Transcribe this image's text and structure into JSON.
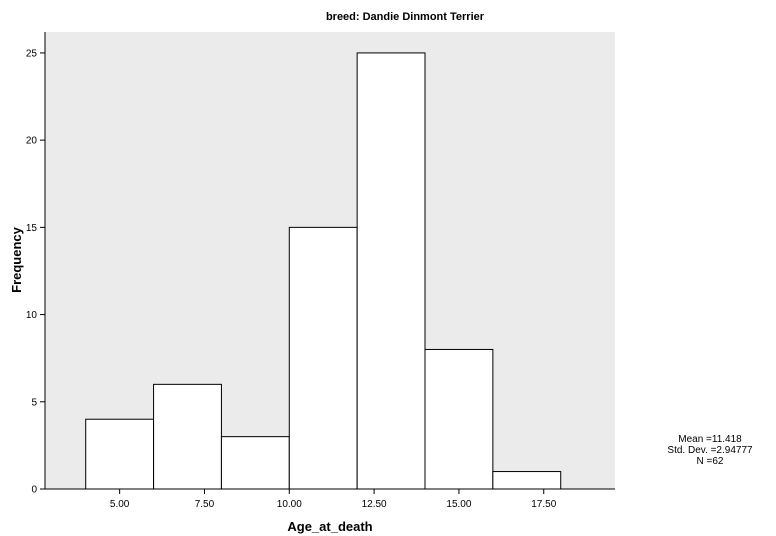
{
  "chart_data": {
    "type": "bar",
    "title": "breed: Dandie Dinmont Terrier",
    "xlabel": "Age_at_death",
    "ylabel": "Frequency",
    "bins": [
      {
        "start": 4,
        "end": 6,
        "count": 4
      },
      {
        "start": 6,
        "end": 8,
        "count": 6
      },
      {
        "start": 8,
        "end": 10,
        "count": 3
      },
      {
        "start": 10,
        "end": 12,
        "count": 15
      },
      {
        "start": 12,
        "end": 14,
        "count": 25
      },
      {
        "start": 14,
        "end": 16,
        "count": 8
      },
      {
        "start": 16,
        "end": 18,
        "count": 1
      }
    ],
    "xlim": [
      2.8,
      19.6
    ],
    "ylim": [
      0,
      26.2
    ],
    "x_ticks": [
      5,
      7.5,
      10,
      12.5,
      15,
      17.5
    ],
    "x_tick_labels": [
      "5.00",
      "7.50",
      "10.00",
      "12.50",
      "15.00",
      "17.50"
    ],
    "y_ticks": [
      0,
      5,
      10,
      15,
      20,
      25
    ],
    "y_tick_labels": [
      "0",
      "5",
      "10",
      "15",
      "20",
      "25"
    ],
    "grid": false,
    "plot_background": "#ebebeb",
    "bar_fill": "#ffffff",
    "bar_stroke": "#000000",
    "stats": {
      "mean": "Mean =11.418",
      "std_dev": "Std. Dev. =2.94777",
      "n": "N =62"
    }
  }
}
